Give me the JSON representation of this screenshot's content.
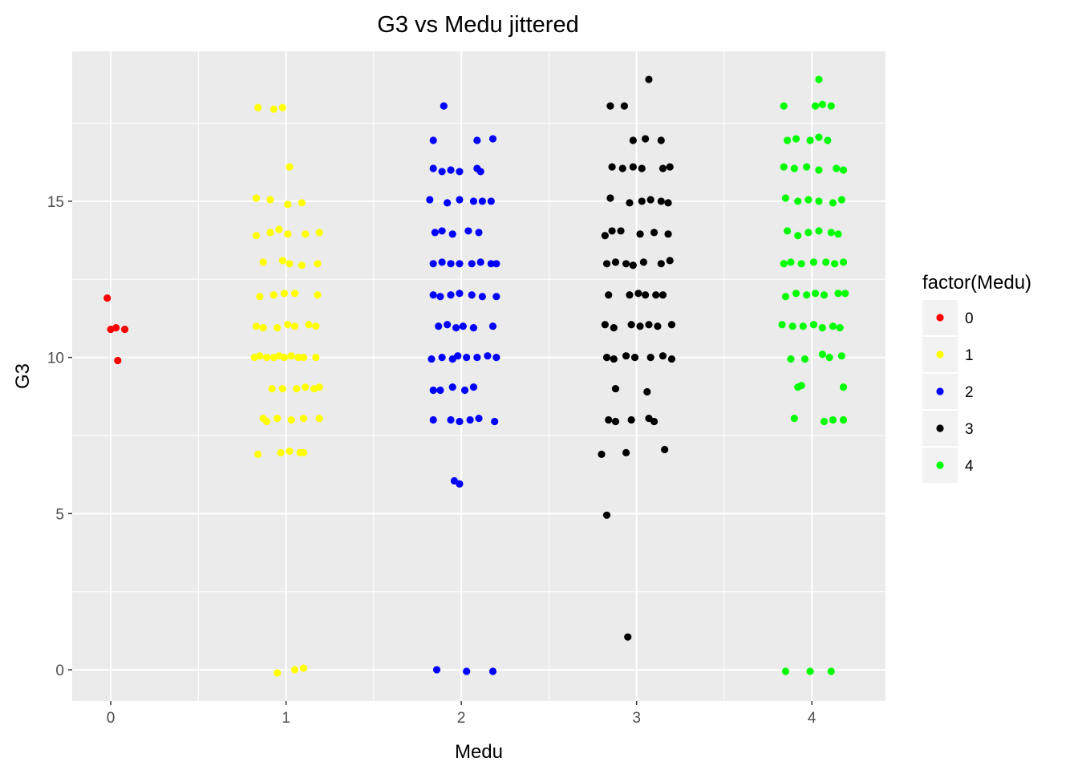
{
  "chart_data": {
    "type": "scatter",
    "title": "G3 vs Medu jittered",
    "xlabel": "Medu",
    "ylabel": "G3",
    "xlim": [
      -0.22,
      4.42
    ],
    "ylim": [
      -1.0,
      19.8
    ],
    "x_ticks": [
      "0",
      "1",
      "2",
      "3",
      "4"
    ],
    "y_ticks": [
      "0",
      "5",
      "10",
      "15"
    ],
    "grid": true,
    "panel_background": "#ebebeb",
    "grid_color": "#ffffff",
    "legend": {
      "title": "factor(Medu)",
      "position": "right",
      "background": "#f2f2f2"
    },
    "series": [
      {
        "name": "0",
        "color": "#ff0000",
        "points": [
          [
            -0.02,
            11.9
          ],
          [
            0.0,
            10.9
          ],
          [
            0.03,
            10.95
          ],
          [
            0.08,
            10.9
          ],
          [
            0.04,
            9.9
          ]
        ]
      },
      {
        "name": "1",
        "color": "#ffff00",
        "points": [
          [
            0.84,
            18.0
          ],
          [
            0.93,
            17.95
          ],
          [
            0.98,
            18.0
          ],
          [
            1.02,
            16.1
          ],
          [
            0.83,
            15.1
          ],
          [
            0.91,
            15.05
          ],
          [
            1.01,
            14.9
          ],
          [
            1.09,
            14.95
          ],
          [
            0.83,
            13.9
          ],
          [
            0.91,
            14.0
          ],
          [
            0.96,
            14.1
          ],
          [
            1.01,
            13.95
          ],
          [
            1.11,
            13.95
          ],
          [
            1.19,
            14.0
          ],
          [
            0.87,
            13.05
          ],
          [
            0.98,
            13.1
          ],
          [
            1.02,
            13.0
          ],
          [
            1.09,
            12.95
          ],
          [
            1.18,
            13.0
          ],
          [
            0.85,
            11.95
          ],
          [
            0.93,
            12.0
          ],
          [
            0.99,
            12.05
          ],
          [
            1.05,
            12.05
          ],
          [
            1.18,
            12.0
          ],
          [
            0.83,
            11.0
          ],
          [
            0.87,
            10.95
          ],
          [
            0.95,
            10.95
          ],
          [
            1.01,
            11.05
          ],
          [
            1.05,
            11.0
          ],
          [
            1.13,
            11.05
          ],
          [
            1.17,
            11.0
          ],
          [
            0.82,
            10.0
          ],
          [
            0.85,
            10.05
          ],
          [
            0.89,
            10.0
          ],
          [
            0.93,
            10.0
          ],
          [
            0.96,
            10.05
          ],
          [
            0.99,
            10.0
          ],
          [
            1.03,
            10.05
          ],
          [
            1.07,
            10.0
          ],
          [
            1.1,
            10.0
          ],
          [
            1.17,
            10.0
          ],
          [
            0.92,
            9.0
          ],
          [
            0.98,
            9.0
          ],
          [
            1.06,
            9.0
          ],
          [
            1.11,
            9.05
          ],
          [
            1.16,
            9.0
          ],
          [
            1.19,
            9.05
          ],
          [
            0.87,
            8.05
          ],
          [
            0.89,
            7.95
          ],
          [
            0.95,
            8.05
          ],
          [
            1.03,
            8.0
          ],
          [
            1.1,
            8.05
          ],
          [
            1.19,
            8.05
          ],
          [
            0.84,
            6.9
          ],
          [
            0.97,
            6.95
          ],
          [
            1.02,
            7.0
          ],
          [
            1.08,
            6.95
          ],
          [
            1.1,
            6.95
          ],
          [
            0.95,
            -0.1
          ],
          [
            1.05,
            0.0
          ],
          [
            1.1,
            0.05
          ]
        ]
      },
      {
        "name": "2",
        "color": "#0000ff",
        "points": [
          [
            1.9,
            18.05
          ],
          [
            1.84,
            16.95
          ],
          [
            2.09,
            16.95
          ],
          [
            2.18,
            17.0
          ],
          [
            1.84,
            16.05
          ],
          [
            1.89,
            15.95
          ],
          [
            1.94,
            16.0
          ],
          [
            1.99,
            15.95
          ],
          [
            2.09,
            16.05
          ],
          [
            2.11,
            15.95
          ],
          [
            1.82,
            15.05
          ],
          [
            1.92,
            14.95
          ],
          [
            1.99,
            15.05
          ],
          [
            2.07,
            15.0
          ],
          [
            2.12,
            15.0
          ],
          [
            2.17,
            15.0
          ],
          [
            1.85,
            14.0
          ],
          [
            1.89,
            14.05
          ],
          [
            1.95,
            13.95
          ],
          [
            2.04,
            14.05
          ],
          [
            2.1,
            14.0
          ],
          [
            1.84,
            13.0
          ],
          [
            1.89,
            13.05
          ],
          [
            1.94,
            13.0
          ],
          [
            1.99,
            13.0
          ],
          [
            2.06,
            13.0
          ],
          [
            2.11,
            13.05
          ],
          [
            2.17,
            13.0
          ],
          [
            2.2,
            13.0
          ],
          [
            1.84,
            12.0
          ],
          [
            1.88,
            11.95
          ],
          [
            1.94,
            12.0
          ],
          [
            1.99,
            12.05
          ],
          [
            2.06,
            12.0
          ],
          [
            2.12,
            11.95
          ],
          [
            2.2,
            11.95
          ],
          [
            1.87,
            11.0
          ],
          [
            1.92,
            11.05
          ],
          [
            1.97,
            10.95
          ],
          [
            2.01,
            11.0
          ],
          [
            2.07,
            10.95
          ],
          [
            2.18,
            11.0
          ],
          [
            1.83,
            9.95
          ],
          [
            1.89,
            10.0
          ],
          [
            1.95,
            9.95
          ],
          [
            1.98,
            10.05
          ],
          [
            2.03,
            10.0
          ],
          [
            2.09,
            10.0
          ],
          [
            2.15,
            10.05
          ],
          [
            2.2,
            10.0
          ],
          [
            1.84,
            8.95
          ],
          [
            1.88,
            8.95
          ],
          [
            1.95,
            9.05
          ],
          [
            2.02,
            8.95
          ],
          [
            2.07,
            9.05
          ],
          [
            1.84,
            8.0
          ],
          [
            1.94,
            8.0
          ],
          [
            1.99,
            7.95
          ],
          [
            2.05,
            8.0
          ],
          [
            2.1,
            8.05
          ],
          [
            2.19,
            7.95
          ],
          [
            1.96,
            6.05
          ],
          [
            1.99,
            5.95
          ],
          [
            1.86,
            0.0
          ],
          [
            2.03,
            -0.05
          ],
          [
            2.18,
            -0.05
          ]
        ]
      },
      {
        "name": "3",
        "color": "#000000",
        "points": [
          [
            3.07,
            18.9
          ],
          [
            2.85,
            18.05
          ],
          [
            2.93,
            18.05
          ],
          [
            2.98,
            16.95
          ],
          [
            3.05,
            17.0
          ],
          [
            3.14,
            16.95
          ],
          [
            2.86,
            16.1
          ],
          [
            2.92,
            16.05
          ],
          [
            2.98,
            16.1
          ],
          [
            3.03,
            16.05
          ],
          [
            3.15,
            16.05
          ],
          [
            3.19,
            16.1
          ],
          [
            2.85,
            15.1
          ],
          [
            2.96,
            14.95
          ],
          [
            3.03,
            15.0
          ],
          [
            3.08,
            15.05
          ],
          [
            3.14,
            15.0
          ],
          [
            3.18,
            14.95
          ],
          [
            2.82,
            13.9
          ],
          [
            2.86,
            14.05
          ],
          [
            2.91,
            14.05
          ],
          [
            3.02,
            13.95
          ],
          [
            3.1,
            14.0
          ],
          [
            3.18,
            13.95
          ],
          [
            2.83,
            13.0
          ],
          [
            2.88,
            13.05
          ],
          [
            2.94,
            13.0
          ],
          [
            2.98,
            12.95
          ],
          [
            3.04,
            13.05
          ],
          [
            3.14,
            13.0
          ],
          [
            3.19,
            13.1
          ],
          [
            2.84,
            12.0
          ],
          [
            2.96,
            12.0
          ],
          [
            3.01,
            12.05
          ],
          [
            3.05,
            12.0
          ],
          [
            3.11,
            12.0
          ],
          [
            3.15,
            12.0
          ],
          [
            2.82,
            11.05
          ],
          [
            2.87,
            10.95
          ],
          [
            2.97,
            11.05
          ],
          [
            3.02,
            11.0
          ],
          [
            3.07,
            11.05
          ],
          [
            3.12,
            11.0
          ],
          [
            3.2,
            11.05
          ],
          [
            2.83,
            10.0
          ],
          [
            2.87,
            9.95
          ],
          [
            2.94,
            10.05
          ],
          [
            2.99,
            10.0
          ],
          [
            3.08,
            10.0
          ],
          [
            3.15,
            10.05
          ],
          [
            3.2,
            9.95
          ],
          [
            2.88,
            9.0
          ],
          [
            3.06,
            8.9
          ],
          [
            2.84,
            8.0
          ],
          [
            2.88,
            7.95
          ],
          [
            2.97,
            8.0
          ],
          [
            3.07,
            8.05
          ],
          [
            3.1,
            7.95
          ],
          [
            2.8,
            6.9
          ],
          [
            2.94,
            6.95
          ],
          [
            3.16,
            7.05
          ],
          [
            2.83,
            4.95
          ],
          [
            2.95,
            1.05
          ]
        ]
      },
      {
        "name": "4",
        "color": "#00ff00",
        "points": [
          [
            4.04,
            18.9
          ],
          [
            3.84,
            18.05
          ],
          [
            4.02,
            18.05
          ],
          [
            4.06,
            18.1
          ],
          [
            4.11,
            18.05
          ],
          [
            3.86,
            16.95
          ],
          [
            3.91,
            17.0
          ],
          [
            3.99,
            16.95
          ],
          [
            4.04,
            17.05
          ],
          [
            4.09,
            16.95
          ],
          [
            3.84,
            16.1
          ],
          [
            3.9,
            16.05
          ],
          [
            3.97,
            16.1
          ],
          [
            4.04,
            16.0
          ],
          [
            4.14,
            16.05
          ],
          [
            4.18,
            16.0
          ],
          [
            3.85,
            15.1
          ],
          [
            3.92,
            15.0
          ],
          [
            3.98,
            15.05
          ],
          [
            4.04,
            15.0
          ],
          [
            4.12,
            14.95
          ],
          [
            4.17,
            15.05
          ],
          [
            3.86,
            14.05
          ],
          [
            3.92,
            13.9
          ],
          [
            3.98,
            14.0
          ],
          [
            4.04,
            14.05
          ],
          [
            4.11,
            14.0
          ],
          [
            4.15,
            13.95
          ],
          [
            3.84,
            13.0
          ],
          [
            3.88,
            13.05
          ],
          [
            3.94,
            13.0
          ],
          [
            4.01,
            13.05
          ],
          [
            4.08,
            13.05
          ],
          [
            4.13,
            13.0
          ],
          [
            4.18,
            13.05
          ],
          [
            3.85,
            11.95
          ],
          [
            3.91,
            12.05
          ],
          [
            3.97,
            12.0
          ],
          [
            4.02,
            12.05
          ],
          [
            4.07,
            12.0
          ],
          [
            4.15,
            12.05
          ],
          [
            4.19,
            12.05
          ],
          [
            3.83,
            11.05
          ],
          [
            3.89,
            11.0
          ],
          [
            3.95,
            11.0
          ],
          [
            4.01,
            11.05
          ],
          [
            4.06,
            10.95
          ],
          [
            4.12,
            11.0
          ],
          [
            4.16,
            10.95
          ],
          [
            3.88,
            9.95
          ],
          [
            3.96,
            9.95
          ],
          [
            4.06,
            10.1
          ],
          [
            4.1,
            10.0
          ],
          [
            4.17,
            10.05
          ],
          [
            3.92,
            9.05
          ],
          [
            3.94,
            9.1
          ],
          [
            4.18,
            9.05
          ],
          [
            3.9,
            8.05
          ],
          [
            4.07,
            7.95
          ],
          [
            4.12,
            8.0
          ],
          [
            4.18,
            8.0
          ],
          [
            3.85,
            -0.05
          ],
          [
            3.99,
            -0.05
          ],
          [
            4.11,
            -0.05
          ]
        ]
      }
    ]
  }
}
